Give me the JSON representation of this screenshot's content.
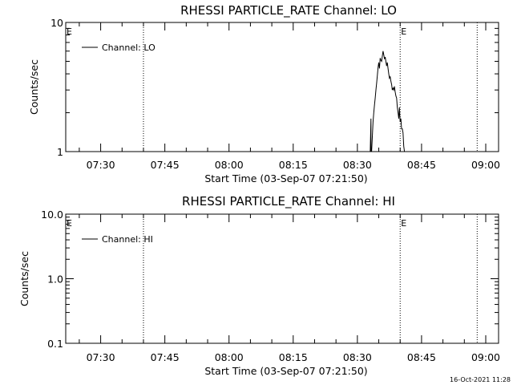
{
  "colors": {
    "background": "#ffffff",
    "foreground": "#000000"
  },
  "timestamp": "16-Oct-2021 11:28",
  "chart_data": [
    {
      "type": "line",
      "title": "RHESSI PARTICLE_RATE Channel: LO",
      "xlabel": "Start Time (03-Sep-07 07:21:50)",
      "ylabel": "Counts/sec",
      "y_scale": "log",
      "ylim": [
        1,
        10
      ],
      "y_ticks": [
        "1",
        "10"
      ],
      "xlim": [
        "07:21:50",
        "09:03:00"
      ],
      "x_ticks": [
        "07:30",
        "07:45",
        "08:00",
        "08:15",
        "08:30",
        "08:45",
        "09:00"
      ],
      "grid": false,
      "legend": "top-left",
      "series": [
        {
          "name": "Channel: LO",
          "x": [
            "08:32:50",
            "08:33:00",
            "08:33:10",
            "08:33:10",
            "08:33:20",
            "08:33:30",
            "08:33:40",
            "08:33:50",
            "08:34:00",
            "08:34:10",
            "08:34:20",
            "08:34:30",
            "08:34:40",
            "08:34:50",
            "08:35:00",
            "08:35:10",
            "08:35:20",
            "08:35:30",
            "08:35:40",
            "08:35:50",
            "08:36:00",
            "08:36:10",
            "08:36:20",
            "08:36:30",
            "08:36:40",
            "08:36:50",
            "08:37:00",
            "08:37:10",
            "08:37:20",
            "08:37:30",
            "08:37:40",
            "08:37:50",
            "08:38:00",
            "08:38:10",
            "08:38:20",
            "08:38:30",
            "08:38:40",
            "08:38:50",
            "08:39:00",
            "08:39:10",
            "08:39:20",
            "08:39:30",
            "08:39:40",
            "08:39:50",
            "08:40:00",
            "08:40:10",
            "08:40:20",
            "08:40:30",
            "08:40:40",
            "08:40:50",
            "08:41:00",
            "08:41:10"
          ],
          "values": [
            1.0,
            1.0,
            1.8,
            1.0,
            1.0,
            1.3,
            1.7,
            2.0,
            2.3,
            2.6,
            3.0,
            3.4,
            3.9,
            4.5,
            4.9,
            4.4,
            5.3,
            5.1,
            5.0,
            5.5,
            6.0,
            5.6,
            5.2,
            5.4,
            5.0,
            4.6,
            4.9,
            4.4,
            4.0,
            3.7,
            3.8,
            3.5,
            3.3,
            3.0,
            3.1,
            3.0,
            3.2,
            2.9,
            2.7,
            2.6,
            2.2,
            2.0,
            1.8,
            2.2,
            1.7,
            1.8,
            1.5,
            1.5,
            1.4,
            1.1,
            1.0,
            1.0
          ]
        }
      ],
      "markers": [
        {
          "time": "07:21:50",
          "label": "E"
        },
        {
          "time": "07:40:00",
          "label": ""
        },
        {
          "time": "08:40:00",
          "label": "E"
        },
        {
          "time": "08:58:00",
          "label": ""
        }
      ]
    },
    {
      "type": "line",
      "title": "RHESSI PARTICLE_RATE Channel: HI",
      "xlabel": "Start Time (03-Sep-07 07:21:50)",
      "ylabel": "Counts/sec",
      "y_scale": "log",
      "ylim": [
        0.1,
        10
      ],
      "y_ticks": [
        "0.1",
        "1.0",
        "10.0"
      ],
      "xlim": [
        "07:21:50",
        "09:03:00"
      ],
      "x_ticks": [
        "07:30",
        "07:45",
        "08:00",
        "08:15",
        "08:30",
        "08:45",
        "09:00"
      ],
      "grid": false,
      "legend": "top-left",
      "series": [
        {
          "name": "Channel: HI",
          "x": [],
          "values": []
        }
      ],
      "markers": [
        {
          "time": "07:21:50",
          "label": "E"
        },
        {
          "time": "07:40:00",
          "label": ""
        },
        {
          "time": "08:40:00",
          "label": "E"
        },
        {
          "time": "08:58:00",
          "label": ""
        }
      ]
    }
  ]
}
